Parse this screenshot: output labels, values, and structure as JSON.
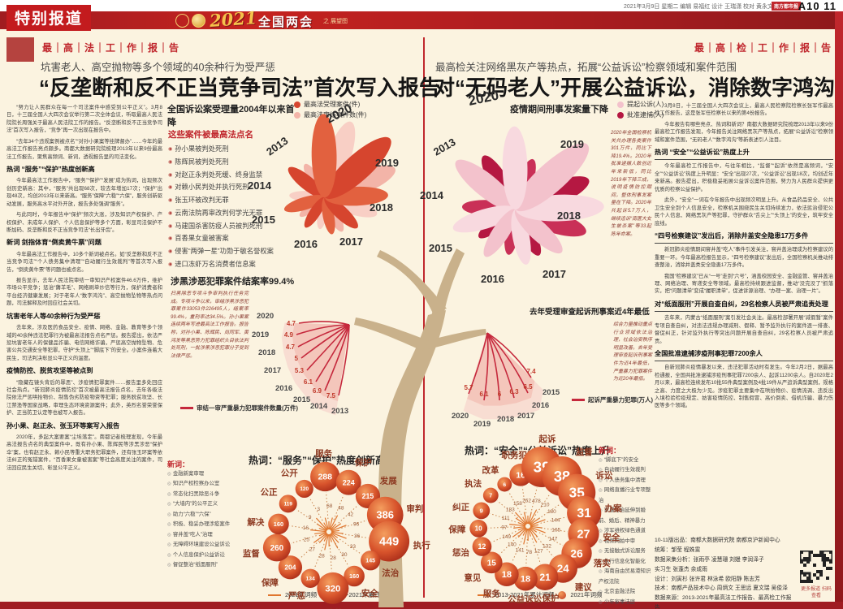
{
  "banner": {
    "section_label": "特别报道",
    "logo_year": "2021",
    "logo_title": "全国两会",
    "logo_sub": "之 展望图",
    "dateline": "2021年3月9日 星期二 编辑 易福红 设计 王瑞潇 校对 黄永文",
    "badge": "南方都市报",
    "page_no": "A10 11"
  },
  "left_page": {
    "kicker": "最｜高｜法｜工｜作｜报｜告",
    "dek": "坑害老人、高空抛物等多个领域的40余种行为受严惩",
    "headline": "“反垄断和反不正当竞争司法”首次写入报告",
    "article": [
      {
        "type": "p",
        "text": "“努力让人民群众在每一个司法案件中感受到公平正义”。3月8日，十三届全国人大四次会议举行第二次全体会议，听取最高人民法院院长周强关于最高人民法院工作的报告。“反垄断和反不正当竞争司法”首次写入报告，“竞争”再一次出现在报告中。"
      },
      {
        "type": "p",
        "text": "“去年34个违规案例被点名”“对孙小果案等挂牌督办”……今年的最高法工作报告亮点颇多。南都大数据研究院梳理2013年以来9份最高法工作报告，聚焦高频词、新词，透视报告里的司法变化。"
      },
      {
        "type": "sub",
        "text": "热词 “服务”“保护”热度创新高"
      },
      {
        "type": "p",
        "text": "今年最高法工作报告中，“服务”“保护”“发展”成为热词，出现频次创历史新高：其中，“服务”共出现68次，较去年增加17次；“保护”出现48次，均创2013年以来新高。“服务”保障“六稳”“六保”，服务创新驱动发展，服务高水平对外开放，报告多处强调“服务”。"
      },
      {
        "type": "p",
        "text": "与此同时，今年报告中“保护”频次大涨，涉及知识产权保护、产权保护、未成年人保护、个人信息保护等多个方面，彰显司法保护不断加码、反垄断和反不正当竞争司法“长出牙齿”。"
      },
      {
        "type": "sub",
        "text": "新词 剑指体育“倒卖黄牛票”问题"
      },
      {
        "type": "p",
        "text": "今年最高法工作报告中，10多个新词被点名。如“反垄断和反不正当竞争司法”“个人债务集中清理”“自动履行生效裁判”等首次写入报告，“倒卖黄牛票”等问题也被点名。"
      },
      {
        "type": "p",
        "text": "报告显示，去年人民法院审结一审知识产权案件46.6万件，维护市场公平竞争；惩治“薅羊毛”、网络刷单炒信等行为，保护消费者和平台经济健康发展；对于老年人“数字鸿沟”、高空抛物坠物等热点问题，司法解释及时回应社会关切。"
      },
      {
        "type": "sub",
        "text": "坑害老年人等40余种行为受严惩"
      },
      {
        "type": "p",
        "text": "去年来，涉及医药食品安全、疫情、网络、金融、教育等多个领域的40余种违法犯罪行为被最高法报告点名严惩。报告提出，依法严惩坑害老年人的保健品诈骗、电信网络诈骗，严惩高空抛物坠物、危害公共交通安全等犯罪，守护“头顶上”“脚底下”的安全。小案件连着大民生，司法判决彰显公平正义的温度。"
      },
      {
        "type": "sub",
        "text": "疫情防控、脱贫攻坚等被点到"
      },
      {
        "type": "p",
        "text": "“隐藏在镜头背后的罪恶”、涉疫情犯罪案件……报告里多处回应社会热点。“新冠肺炎疫情防控”首次被最高法报告点名，去年各级法院依法严惩哄抬物价、制售伪劣防疫物资等犯罪；服务脱贫攻坚、长江禁渔等国家战略，审理生态环境资源案件；此外，英烈名誉荣誉保护、正当防卫认定等也被写入报告。"
      },
      {
        "type": "sub",
        "text": "孙小果、赵正永、张玉环等案写入报告"
      },
      {
        "type": "p",
        "text": "2020年，多起大案要案“尘埃落定”。南都记者梳理发现，今年最高法报告点名的典型案件中，既有孙小果、陈辉民等涉黑涉恶“保护伞”案，也有赵正永、赖小民等重大职务犯罪案件，还有张玉环案等依法纠正的冤错案件，“百香果女童被害案”等社会高度关注的案件，司法回应民生关切、彰显公平正义。"
      }
    ]
  },
  "right_page": {
    "kicker": "最｜高｜检｜工｜作｜报｜告",
    "dek": "最高检关注网络黑灰产等热点，拓展“公益诉讼”检察领域和案件范围",
    "headline": "对“无码老人”开展公益诉讼，消除数字鸿沟",
    "article": [
      {
        "type": "p",
        "text": "3月8日，十三届全国人大四次会议上，最高人民检察院检察长张军作最高检工作报告，这是张军任检察长以来的第4份报告。"
      },
      {
        "type": "p",
        "text": "今年报告有哪些亮点、热词和新词？南都大数据研究院梳理2013年以来9份最高检工作报告发现，今年报告关注网络黑灰产等热点，拓展“公益诉讼”检察领域和案件范围，“无码老人”“数字鸿沟”等新表述引人注目。"
      },
      {
        "type": "sub",
        "text": "热词 “安全”“公益诉讼”热度上升"
      },
      {
        "type": "p",
        "text": "今年最高检工作报告中，与往年相比，“监督”“起诉”依然是高频词，“安全”“公益诉讼”热度上升明显：“安全”出现27次，“公益诉讼”出现18次，均创近年来新高。报告提出，积极稳妥拓展公益诉讼案件范围，努力为人民群众提供更优质的检察公益保护。"
      },
      {
        "type": "p",
        "text": "此外，“安全”一词在今年报告中出现频次明显上升。从食品药品安全、公共卫生安全到个人信息安全，检察机关围绕民生关切持续发力，依法惩治侵犯公民个人信息、网络黑灰产等犯罪，守护群众“舌尖上”“头顶上”的安全，筑牢安全底线。"
      },
      {
        "type": "sub",
        "text": "“四号检察建议”发出后，消除井盖安全隐患17万多件"
      },
      {
        "type": "p",
        "text": "新冠肺炎疫情期间窨井盖“吃人”事件引发关注，窨井盖治理成为检察建议的重要一环。今年最高检报告显示，“四号检察建议”发出后，全国检察机关推动排查整治，消除井盖类安全隐患17万多件。"
      },
      {
        "type": "p",
        "text": "我国“检察建议”已从“一号”走到“六号”，涵盖校园安全、金融监管、窨井盖治理、网络治理、寄递安全等领域。最高检持续跟进监督，推动“没完没了”抓落实，把“问题清单”变成“履职清单”，促进诉源治理、“办理一案、治理一片”。"
      },
      {
        "type": "sub",
        "text": "对“纸面服刑”开展自查自纠，29名检察人员被严肃追责处理"
      },
      {
        "type": "p",
        "text": "去年来，内蒙古“纸面服刑”案引发社会关注。最高检部署开展“减假暂”案件专项自查自纠，对违法违规办理减刑、假释、暂予监外执行的案件逐一排查、督促纠正，针对监外执行等突出问题开展自查自纠，29名检察人员被严肃追责。"
      },
      {
        "type": "sub",
        "text": "全国批准逮捕涉疫刑事犯罪7200余人"
      },
      {
        "type": "p",
        "text": "自新冠肺炎疫情暴发以来，违法犯罪活动时有发生。今年2月2日，据最高检通报，全国共批准逮捕涉疫刑事犯罪7200余人、起诉11200余人。自2020年2月以来，最高检连续发布10批55件典型案例及4批19件从严追诉典型案例，规格之高、力度之大极为少见。涉疫犯罪主要集中在哄抬物价、疫情流调、违反出入境检验检疫规定、妨害疫情防控、制售假冒、高价倒卖、借机诈骗、暴力伤医等多个领域。"
      }
    ]
  },
  "named_cases": {
    "title": "这些案件被最高法点名",
    "items": [
      "孙小果被判处死刑",
      "陈辉民被判处死刑",
      "对赵正永判处死缓、终身监禁",
      "对赖小民判处并执行死刑",
      "张玉环被改判无罪",
      "云南法院再审改判何学光无罪",
      "马建国杀害防疫人员被判死刑",
      "百香果女童被害案",
      "侵害“两弹一星”功勋于敏名誉权案",
      "进口冻虾万名消费者信息案"
    ]
  },
  "new_words_left": {
    "label": "新词：",
    "items": [
      "金融新案审理",
      "知识产权检察办公室",
      "常态化扫黑除恶斗争",
      "“大墙内”的公平正义",
      "助力“六稳”“六保”",
      "积极、稳妥办理涉疫案件",
      "窨井盖“吃人”治理",
      "无障碍环境建设公益诉讼",
      "个人信息保护公益诉讼",
      "督促整治“纸面服刑”"
    ]
  },
  "new_words_right": {
    "label": "新词：",
    "items": [
      "“脚底下”的安全",
      "自动履行生效裁判",
      "个人债务集中清理",
      "网络直播行业专项整治",
      "家暴防治延伸到婚前、婚后、精神暴力",
      "涉军维权绿色通道",
      "视频网拍中审",
      "无接触式诉讼服务",
      "执行信息化智能化",
      "海南自由贸易港知识产权法院",
      "北京金融法院",
      "少年家事法庭",
      "反垄断和反不正当竞争司法",
      "查处“纸面服刑”"
    ]
  },
  "credits": {
    "lines": [
      "10-11版出品：南都大数据研究院 南都京沪新闻中心",
      "统筹：邹莹 程姝雯",
      "数据采集分析：张雨亭 凌慧珊 刘嫚 李润泽子",
      "实习生 张蓬杰 余成雨",
      "设计：刘寅杉 张许君 林泳希 欧阳静 陈志芳",
      "技术：南都产品技术中心 周炳文 王思远 夏文瑞 吴俊泽",
      "数据来源：2013-2021年最高法工作报告、最高检工作报告"
    ]
  },
  "qr_caption": "更多报道 扫码查看",
  "chart_data": [
    {
      "type": "radial-flower",
      "title": "全国诉讼案受理量2004年以来首降",
      "categories": [
        "2013",
        "2014",
        "2015",
        "2016",
        "2017",
        "2018",
        "2019",
        "2020"
      ],
      "series": [
        {
          "name": "最高法受理案件(件)",
          "color": "#d6452e",
          "color2": "#e2613f",
          "relative_values": [
            0.56,
            0.62,
            0.66,
            0.74,
            0.82,
            0.88,
            1.0,
            0.95
          ]
        },
        {
          "name": "最高法审结案件数(件)",
          "color": "#f3b4a8",
          "color2": "#f8cfc5",
          "relative_values": [
            0.5,
            0.56,
            0.62,
            0.68,
            0.76,
            0.82,
            0.93,
            0.98
          ]
        }
      ]
    },
    {
      "type": "radial-flower",
      "title": "疫情期间刑事发案量下降",
      "categories": [
        "2013",
        "2014",
        "2015",
        "2016",
        "2017",
        "2018",
        "2019",
        "2020"
      ],
      "series": [
        {
          "name": "提起公诉(人)",
          "color": "#f3c2cc",
          "color2": "#f8d9df",
          "relative_values": [
            0.82,
            0.84,
            0.87,
            0.9,
            0.93,
            1.0,
            0.98,
            0.8
          ]
        },
        {
          "name": "批准逮捕(人)",
          "color": "#b51842",
          "color2": "#c93057",
          "relative_values": [
            0.72,
            0.74,
            0.77,
            0.79,
            0.82,
            0.9,
            0.86,
            0.55
          ]
        }
      ],
      "annotation": "2020年全国检察机关共办理各类案件301万件，同比下降19.4%。2020年批准逮捕人数创近年来新低，同比2019年下降三成，说明疫情防控期间，整体刑事发案量在下降。2020年共起诉5.7万人，继续追诉“南医大女生被杀案”等33起陈年命案。"
    },
    {
      "type": "fan-line",
      "title": "涉黑涉恶犯罪案件结案率99.4%",
      "x": [
        "2020",
        "2019",
        "2018",
        "2017",
        "2016",
        "2015",
        "2014",
        "2013"
      ],
      "values": [
        4.7,
        4.9,
        4.7,
        5.0,
        5.3,
        6.1,
        6.9,
        7.5
      ],
      "series_label": "审结一审严重暴力犯罪案件数量(万件)",
      "annotation": "扫黑除恶专项斗争审判执行任务完成。专项斗争以来，审结涉黑涉恶犯罪案件33053件226495人，结案率99.4%，重刑率达34.5%。孙小果案连续两年写进最高法工作报告。报告称，对孙小果、陈辉民、尚同军、黄鸿发等黑恶势力犯罪组织头目依法判处死刑，一批涉黑涉恶犯罪分子受到法律严惩。"
    },
    {
      "type": "fan-line",
      "title": "去年受理审查起诉刑事案近4年最低",
      "x": [
        "2020",
        "2019",
        "2018",
        "2017",
        "2016",
        "2015"
      ],
      "values": [
        5.7,
        6.1,
        6.0,
        6.3,
        6.5,
        7.4
      ],
      "series_label": "起诉严重暴力犯罪(万人)",
      "annotation": "综合力量推动重点行业领域依法治理，社会治安秩序明显改善。去年受理审查起诉刑事案件为近4年最低，严重暴力犯罪案件为近20年最低。"
    },
    {
      "type": "dandelion",
      "title": "热词：“服务”“保护”热度创新高",
      "legend": [
        {
          "label": "2021年词频",
          "marker": "line"
        },
        {
          "label": "2013-2021年累计词频",
          "marker": "bubble"
        }
      ],
      "bubble_value": "freq_cum",
      "stem_value": "freq_2021",
      "words": [
        {
          "word": "服务",
          "freq_2021": 68,
          "freq_cum": 288
        },
        {
          "word": "保护",
          "freq_2021": 48,
          "freq_cum": 224
        },
        {
          "word": "发展",
          "freq_2021": 42,
          "freq_cum": 215
        },
        {
          "word": "审判",
          "freq_2021": 96,
          "freq_cum": 386
        },
        {
          "word": "执行",
          "freq_2021": 36,
          "freq_cum": 449
        },
        {
          "word": "法治",
          "freq_2021": 33,
          "freq_cum": 145
        },
        {
          "word": "安全",
          "freq_2021": 30,
          "freq_cum": 160
        },
        {
          "word": "改革",
          "freq_2021": 28,
          "freq_cum": 320
        },
        {
          "word": "严惩",
          "freq_2021": 28,
          "freq_cum": 134
        },
        {
          "word": "保障",
          "freq_2021": 27,
          "freq_cum": 204
        },
        {
          "word": "监督",
          "freq_2021": 25,
          "freq_cum": 260
        },
        {
          "word": "解决",
          "freq_2021": 16,
          "freq_cum": 160
        },
        {
          "word": "公正",
          "freq_2021": 9,
          "freq_cum": 119
        },
        {
          "word": "公开",
          "freq_2021": 3,
          "freq_cum": 120
        }
      ]
    },
    {
      "type": "dandelion",
      "title": "热词：“安全”“公益诉讼”热度上升",
      "legend": [
        {
          "label": "2013-2021年累计词频",
          "marker": "line"
        },
        {
          "label": "2021年词频",
          "marker": "bubble"
        }
      ],
      "bubble_value": "freq_2021",
      "stem_value": "freq_cum",
      "words": [
        {
          "word": "职务犯罪",
          "freq_2021": 16,
          "freq_cum": 262
        },
        {
          "word": "起诉",
          "freq_2021": 39,
          "freq_cum": 478
        },
        {
          "word": "监督",
          "freq_2021": 38,
          "freq_cum": 210
        },
        {
          "word": "诉讼",
          "freq_2021": 35,
          "freq_cum": 180
        },
        {
          "word": "办案",
          "freq_2021": 31,
          "freq_cum": 144
        },
        {
          "word": "安全",
          "freq_2021": 27,
          "freq_cum": 165
        },
        {
          "word": "落实",
          "freq_2021": 26,
          "freq_cum": 147
        },
        {
          "word": "建议",
          "freq_2021": 24,
          "freq_cum": 132
        },
        {
          "word": "保护",
          "freq_2021": 21,
          "freq_cum": 127
        },
        {
          "word": "公益诉讼",
          "freq_2021": 18,
          "freq_cum": 78
        },
        {
          "word": "服务",
          "freq_2021": 18,
          "freq_cum": 141
        },
        {
          "word": "意见",
          "freq_2021": 15,
          "freq_cum": 140
        },
        {
          "word": "惩治",
          "freq_2021": 12,
          "freq_cum": 149
        },
        {
          "word": "保障",
          "freq_2021": 10,
          "freq_cum": 97
        },
        {
          "word": "纠正",
          "freq_2021": 9,
          "freq_cum": 111
        },
        {
          "word": "执法",
          "freq_2021": 7,
          "freq_cum": 183
        },
        {
          "word": "改革",
          "freq_2021": 6,
          "freq_cum": 158
        }
      ]
    }
  ]
}
